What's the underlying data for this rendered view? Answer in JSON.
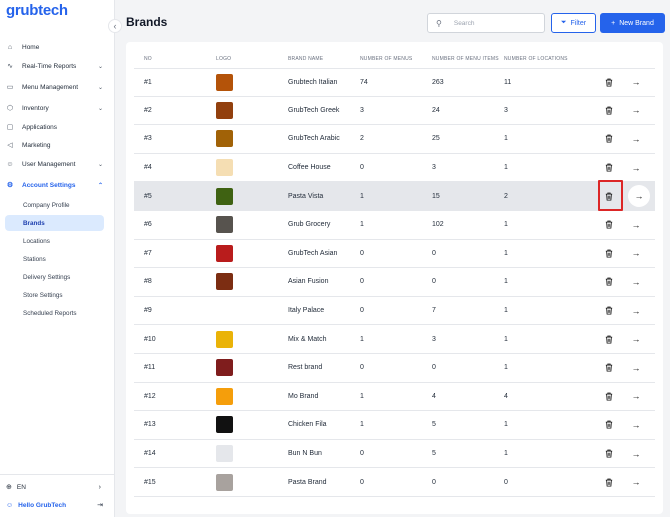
{
  "app": {
    "logo_text": "grubtech"
  },
  "sidebar": {
    "items": [
      {
        "label": "Home",
        "icon": "home-icon",
        "glyph": "⌂",
        "chevron": ""
      },
      {
        "label": "Real-Time Reports",
        "icon": "pulse-icon",
        "glyph": "∿",
        "chevron": "⌄"
      },
      {
        "label": "Menu Management",
        "icon": "book-icon",
        "glyph": "▭",
        "chevron": "⌄"
      },
      {
        "label": "Inventory",
        "icon": "box-icon",
        "glyph": "⬡",
        "chevron": "⌄"
      },
      {
        "label": "Applications",
        "icon": "monitor-icon",
        "glyph": "▢",
        "chevron": ""
      },
      {
        "label": "Marketing",
        "icon": "megaphone-icon",
        "glyph": "◁",
        "chevron": ""
      },
      {
        "label": "User Management",
        "icon": "users-icon",
        "glyph": "☺",
        "chevron": "⌄"
      },
      {
        "label": "Account Settings",
        "icon": "settings-icon",
        "glyph": "⚙",
        "chevron": "⌃"
      }
    ],
    "sub_items": [
      {
        "label": "Company Profile"
      },
      {
        "label": "Brands"
      },
      {
        "label": "Locations"
      },
      {
        "label": "Stations"
      },
      {
        "label": "Delivery Settings"
      },
      {
        "label": "Store Settings"
      },
      {
        "label": "Scheduled Reports"
      }
    ],
    "language": "EN",
    "user_greeting": "Hello GrubTech"
  },
  "header": {
    "title": "Brands",
    "search_placeholder": "Search",
    "filter_label": "Filter",
    "new_brand_label": "New Brand"
  },
  "table": {
    "columns": [
      "NO",
      "LOGO",
      "BRAND NAME",
      "NUMBER OF MENUS",
      "NUMBER OF MENU ITEMS",
      "NUMBER OF LOCATIONS"
    ],
    "rows": [
      {
        "no": "#1",
        "name": "Grubtech Italian",
        "menus": "74",
        "items": "263",
        "locations": "11",
        "logo_color": "#b45309"
      },
      {
        "no": "#2",
        "name": "GrubTech Greek",
        "menus": "3",
        "items": "24",
        "locations": "3",
        "logo_color": "#92400e"
      },
      {
        "no": "#3",
        "name": "GrubTech Arabic",
        "menus": "2",
        "items": "25",
        "locations": "1",
        "logo_color": "#a16207"
      },
      {
        "no": "#4",
        "name": "Coffee House",
        "menus": "0",
        "items": "3",
        "locations": "1",
        "logo_color": "#f5deb3"
      },
      {
        "no": "#5",
        "name": "Pasta Vista",
        "menus": "1",
        "items": "15",
        "locations": "2",
        "logo_color": "#3f6212"
      },
      {
        "no": "#6",
        "name": "Grub Grocery",
        "menus": "1",
        "items": "102",
        "locations": "1",
        "logo_color": "#57534e"
      },
      {
        "no": "#7",
        "name": "GrubTech Asian",
        "menus": "0",
        "items": "0",
        "locations": "1",
        "logo_color": "#b91c1c"
      },
      {
        "no": "#8",
        "name": "Asian Fusion",
        "menus": "0",
        "items": "0",
        "locations": "1",
        "logo_color": "#7c2d12"
      },
      {
        "no": "#9",
        "name": "Italy Palace",
        "menus": "0",
        "items": "7",
        "locations": "1",
        "logo_color": ""
      },
      {
        "no": "#10",
        "name": "Mix & Match",
        "menus": "1",
        "items": "3",
        "locations": "1",
        "logo_color": "#eab308"
      },
      {
        "no": "#11",
        "name": "Rest brand",
        "menus": "0",
        "items": "0",
        "locations": "1",
        "logo_color": "#7f1d1d"
      },
      {
        "no": "#12",
        "name": "Mo Brand",
        "menus": "1",
        "items": "4",
        "locations": "4",
        "logo_color": "#f59e0b"
      },
      {
        "no": "#13",
        "name": "Chicken Fila",
        "menus": "1",
        "items": "5",
        "locations": "1",
        "logo_color": "#111111"
      },
      {
        "no": "#14",
        "name": "Bun N Bun",
        "menus": "0",
        "items": "5",
        "locations": "1",
        "logo_color": "#e5e7eb"
      },
      {
        "no": "#15",
        "name": "Pasta Brand",
        "menus": "0",
        "items": "0",
        "locations": "0",
        "logo_color": "#a8a29e"
      }
    ],
    "highlighted_row": "#5"
  },
  "colors": {
    "accent": "#2563eb",
    "highlight_border": "#dc2626",
    "row_highlight": "#e5e7eb"
  }
}
